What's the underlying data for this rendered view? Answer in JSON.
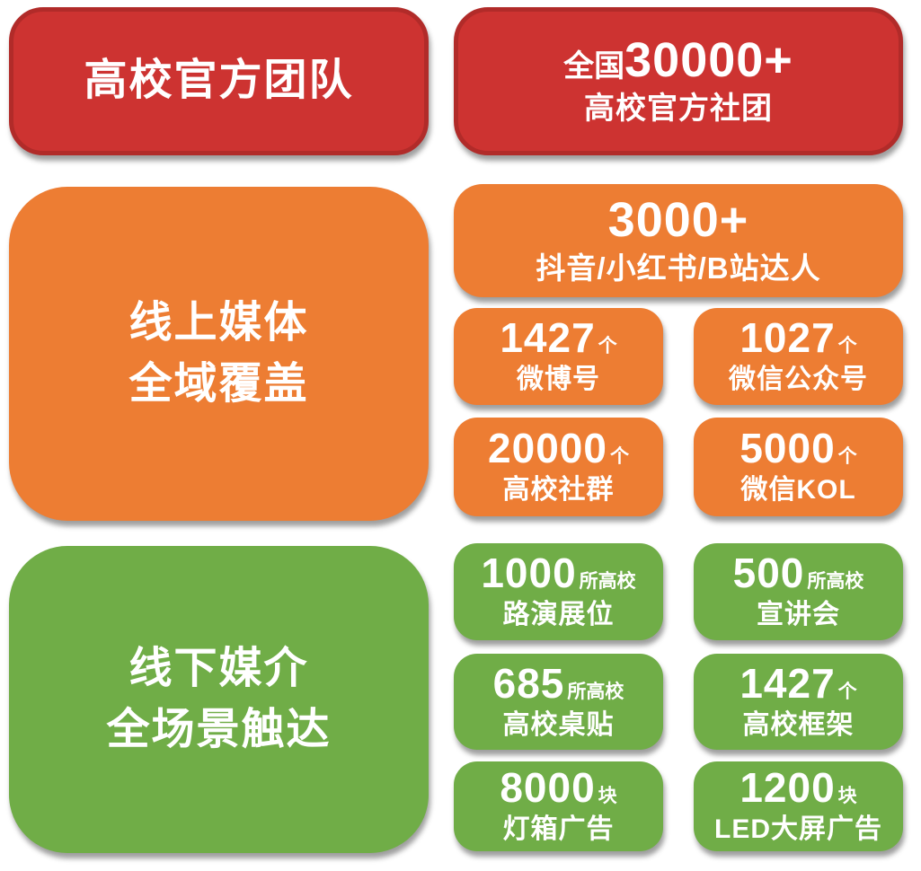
{
  "colors": {
    "page_bg": "#ffffff",
    "red": "#cd3331",
    "red_dark": "#b12b29",
    "orange": "#ed7d33",
    "green": "#70ad47",
    "text": "#ffffff"
  },
  "sections": {
    "team": {
      "label": "高校官方团队",
      "stat": {
        "prefix": "全国",
        "value": "30000+",
        "caption": "高校官方社团"
      }
    },
    "online": {
      "label_line1": "线上媒体",
      "label_line2": "全域覆盖",
      "wide": {
        "value": "3000+",
        "caption": "抖音/小红书/B站达人"
      },
      "cells": [
        {
          "value": "1427",
          "unit": "个",
          "caption": "微博号"
        },
        {
          "value": "1027",
          "unit": "个",
          "caption": "微信公众号"
        },
        {
          "value": "20000",
          "unit": "个",
          "caption": "高校社群"
        },
        {
          "value": "5000",
          "unit": "个",
          "caption": "微信KOL"
        }
      ]
    },
    "offline": {
      "label_line1": "线下媒介",
      "label_line2": "全场景触达",
      "cells": [
        {
          "value": "1000",
          "unit": "所高校",
          "caption": "路演展位"
        },
        {
          "value": "500",
          "unit": "所高校",
          "caption": "宣讲会"
        },
        {
          "value": "685",
          "unit": "所高校",
          "caption": "高校桌贴"
        },
        {
          "value": "1427",
          "unit": "个",
          "caption": "高校框架"
        },
        {
          "value": "8000",
          "unit": "块",
          "caption": "灯箱广告"
        },
        {
          "value": "1200",
          "unit": "块",
          "caption": "LED大屏广告"
        }
      ]
    }
  }
}
